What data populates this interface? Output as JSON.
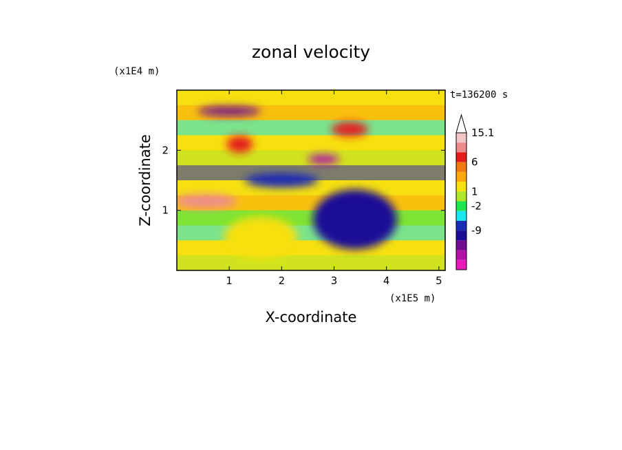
{
  "chart_data": {
    "type": "heatmap",
    "title": "zonal velocity",
    "xlabel": "X-coordinate",
    "ylabel": "Z-coordinate",
    "x_multiplier": "(x1E5 m)",
    "y_multiplier": "(x1E4 m)",
    "time_label": "t=136200 s",
    "xlim": [
      0,
      5.12
    ],
    "ylim": [
      0,
      3.0
    ],
    "x_ticks": [
      "1",
      "2",
      "3",
      "4",
      "5"
    ],
    "y_ticks": [
      "1",
      "2"
    ],
    "colorbar": {
      "labels": [
        "15.1",
        "6",
        "1",
        "-2",
        "-9"
      ],
      "colors": [
        "#f2c6c6",
        "#ee8c8c",
        "#e41c1c",
        "#f07a10",
        "#fca80c",
        "#f6e010",
        "#b0e62a",
        "#1ee650",
        "#18e6f0",
        "#1a2ab4",
        "#1c0c96",
        "#700c90",
        "#b012a8",
        "#e81ab8"
      ],
      "extend_max": true
    },
    "blobs": [
      {
        "x": 1.2,
        "y": 2.1,
        "rx": 0.25,
        "ry": 0.14,
        "v": 10
      },
      {
        "x": 2.8,
        "y": 1.85,
        "rx": 0.3,
        "ry": 0.08,
        "v": -10
      },
      {
        "x": 3.3,
        "y": 2.35,
        "rx": 0.35,
        "ry": 0.12,
        "v": 10
      },
      {
        "x": 2.0,
        "y": 1.5,
        "rx": 0.7,
        "ry": 0.12,
        "v": -4
      },
      {
        "x": 0.55,
        "y": 1.15,
        "rx": 0.6,
        "ry": 0.12,
        "v": 12
      },
      {
        "x": 1.0,
        "y": 2.65,
        "rx": 0.6,
        "ry": 0.08,
        "v": -8
      },
      {
        "x": 3.4,
        "y": 0.85,
        "rx": 0.8,
        "ry": 0.5,
        "v": -5
      },
      {
        "x": 1.6,
        "y": 0.55,
        "rx": 0.7,
        "ry": 0.35,
        "v": 3
      }
    ]
  }
}
